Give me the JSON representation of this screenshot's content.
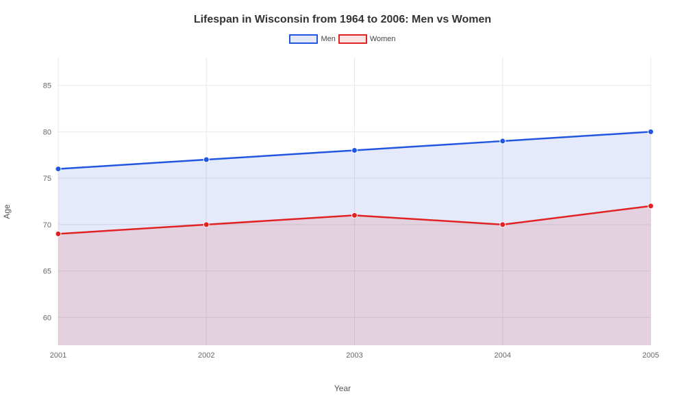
{
  "chart": {
    "type": "line-area",
    "title": "Lifespan in Wisconsin from 1964 to 2006: Men vs Women",
    "title_fontsize": 16,
    "xlabel": "Year",
    "ylabel": "Age",
    "label_fontsize": 12,
    "background_color": "#ffffff",
    "grid_color": "#e8e8e8",
    "x_categories": [
      "2001",
      "2002",
      "2003",
      "2004",
      "2005"
    ],
    "ylim": [
      57,
      88
    ],
    "yticks": [
      60,
      65,
      70,
      75,
      80,
      85
    ],
    "line_width": 2.5,
    "marker_radius": 4,
    "series": [
      {
        "name": "Men",
        "values": [
          76,
          77,
          78,
          79,
          80
        ],
        "line_color": "#2255e0",
        "fill_color": "rgba(34,85,224,0.12)",
        "marker_color": "#2255e0"
      },
      {
        "name": "Women",
        "values": [
          69,
          70,
          71,
          70,
          72
        ],
        "line_color": "#e02222",
        "fill_color": "rgba(224,34,34,0.12)",
        "marker_color": "#e02222"
      }
    ],
    "legend": {
      "position": "top-center",
      "items": [
        "Men",
        "Women"
      ]
    }
  }
}
